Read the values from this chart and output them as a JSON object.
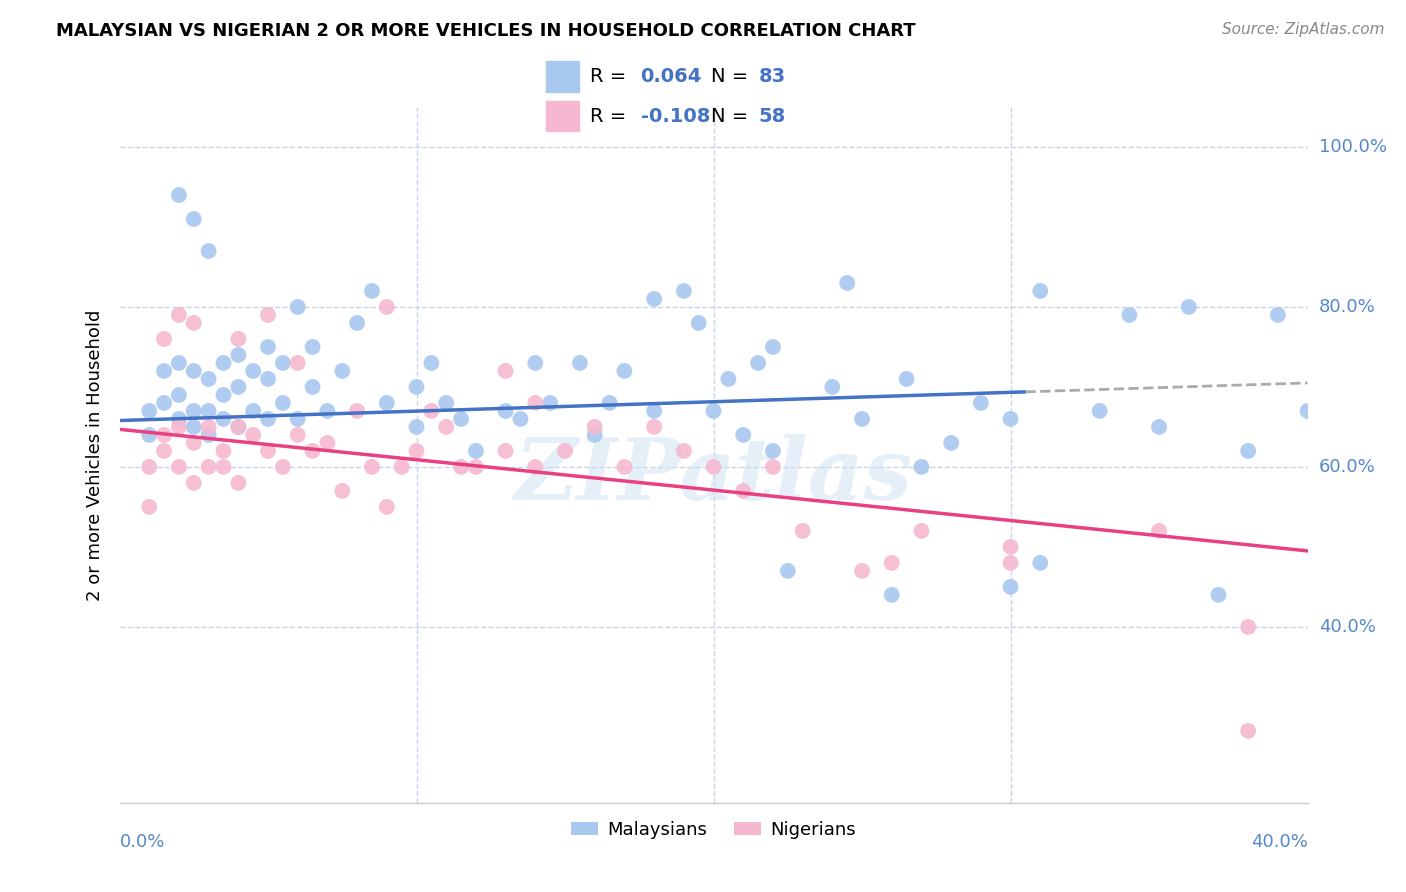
{
  "title": "MALAYSIAN VS NIGERIAN 2 OR MORE VEHICLES IN HOUSEHOLD CORRELATION CHART",
  "source": "Source: ZipAtlas.com",
  "ylabel": "2 or more Vehicles in Household",
  "xlim": [
    0.0,
    0.4
  ],
  "ylim": [
    0.18,
    1.05
  ],
  "yticks": [
    0.4,
    0.6,
    0.8,
    1.0
  ],
  "ytick_labels": [
    "40.0%",
    "60.0%",
    "80.0%",
    "100.0%"
  ],
  "malaysian_color": "#a8c8f0",
  "nigerian_color": "#f5b8d0",
  "trendline_malaysian_color": "#4472c4",
  "trendline_nigerian_color": "#e84080",
  "trendline_ext_color": "#aaaaaa",
  "R_malaysian": 0.064,
  "N_malaysian": 83,
  "R_nigerian": -0.108,
  "N_nigerian": 58,
  "watermark": "ZIPatlas",
  "background_color": "#ffffff",
  "grid_color": "#c8d4e8",
  "legend_color": "#4472c4",
  "xtick_color": "#5588cc",
  "ytick_color": "#5588cc",
  "malaysian_x": [
    0.01,
    0.01,
    0.015,
    0.015,
    0.02,
    0.02,
    0.02,
    0.025,
    0.025,
    0.025,
    0.03,
    0.03,
    0.03,
    0.035,
    0.035,
    0.035,
    0.04,
    0.04,
    0.04,
    0.045,
    0.045,
    0.05,
    0.05,
    0.05,
    0.055,
    0.055,
    0.06,
    0.06,
    0.065,
    0.065,
    0.07,
    0.075,
    0.08,
    0.085,
    0.09,
    0.1,
    0.1,
    0.105,
    0.11,
    0.115,
    0.12,
    0.13,
    0.135,
    0.14,
    0.145,
    0.155,
    0.16,
    0.165,
    0.17,
    0.18,
    0.19,
    0.2,
    0.205,
    0.21,
    0.215,
    0.22,
    0.225,
    0.24,
    0.25,
    0.26,
    0.265,
    0.27,
    0.28,
    0.29,
    0.3,
    0.31,
    0.33,
    0.34,
    0.35,
    0.36,
    0.37,
    0.38,
    0.39,
    0.4,
    0.02,
    0.025,
    0.03,
    0.18,
    0.195,
    0.22,
    0.245,
    0.3,
    0.31
  ],
  "malaysian_y": [
    0.67,
    0.64,
    0.68,
    0.72,
    0.66,
    0.69,
    0.73,
    0.65,
    0.67,
    0.72,
    0.64,
    0.67,
    0.71,
    0.66,
    0.69,
    0.73,
    0.65,
    0.7,
    0.74,
    0.67,
    0.72,
    0.66,
    0.71,
    0.75,
    0.68,
    0.73,
    0.66,
    0.8,
    0.7,
    0.75,
    0.67,
    0.72,
    0.78,
    0.82,
    0.68,
    0.65,
    0.7,
    0.73,
    0.68,
    0.66,
    0.62,
    0.67,
    0.66,
    0.73,
    0.68,
    0.73,
    0.64,
    0.68,
    0.72,
    0.67,
    0.82,
    0.67,
    0.71,
    0.64,
    0.73,
    0.62,
    0.47,
    0.7,
    0.66,
    0.44,
    0.71,
    0.6,
    0.63,
    0.68,
    0.45,
    0.48,
    0.67,
    0.79,
    0.65,
    0.8,
    0.44,
    0.62,
    0.79,
    0.67,
    0.94,
    0.91,
    0.87,
    0.81,
    0.78,
    0.75,
    0.83,
    0.66,
    0.82
  ],
  "nigerian_x": [
    0.01,
    0.01,
    0.015,
    0.015,
    0.02,
    0.02,
    0.025,
    0.025,
    0.03,
    0.03,
    0.035,
    0.035,
    0.04,
    0.04,
    0.045,
    0.05,
    0.055,
    0.06,
    0.065,
    0.07,
    0.075,
    0.08,
    0.085,
    0.09,
    0.095,
    0.1,
    0.105,
    0.11,
    0.115,
    0.12,
    0.13,
    0.14,
    0.15,
    0.16,
    0.17,
    0.18,
    0.19,
    0.2,
    0.21,
    0.22,
    0.23,
    0.25,
    0.26,
    0.27,
    0.3,
    0.3,
    0.35,
    0.38,
    0.015,
    0.02,
    0.025,
    0.04,
    0.05,
    0.06,
    0.09,
    0.13,
    0.14,
    0.38
  ],
  "nigerian_y": [
    0.6,
    0.55,
    0.62,
    0.64,
    0.65,
    0.6,
    0.58,
    0.63,
    0.6,
    0.65,
    0.6,
    0.62,
    0.58,
    0.65,
    0.64,
    0.62,
    0.6,
    0.64,
    0.62,
    0.63,
    0.57,
    0.67,
    0.6,
    0.55,
    0.6,
    0.62,
    0.67,
    0.65,
    0.6,
    0.6,
    0.62,
    0.6,
    0.62,
    0.65,
    0.6,
    0.65,
    0.62,
    0.6,
    0.57,
    0.6,
    0.52,
    0.47,
    0.48,
    0.52,
    0.48,
    0.5,
    0.52,
    0.4,
    0.76,
    0.79,
    0.78,
    0.76,
    0.79,
    0.73,
    0.8,
    0.72,
    0.68,
    0.27
  ],
  "trendline_malaysian_x0": 0.0,
  "trendline_malaysian_x1": 0.4,
  "trendline_malaysian_y0": 0.658,
  "trendline_malaysian_y1": 0.705,
  "trendline_split_x": 0.305,
  "trendline_nigerian_x0": 0.0,
  "trendline_nigerian_x1": 0.4,
  "trendline_nigerian_y0": 0.647,
  "trendline_nigerian_y1": 0.495
}
